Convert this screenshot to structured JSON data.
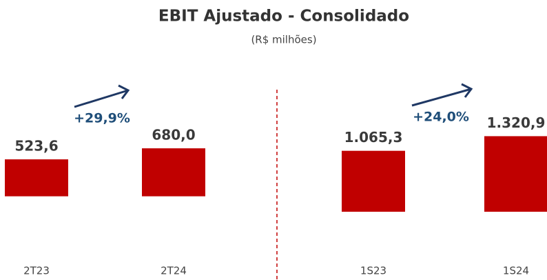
{
  "header": {
    "title": "EBIT Ajustado - Consolidado",
    "subtitle": "(R$ milhões)"
  },
  "chart_data": [
    {
      "type": "bar",
      "categories": [
        "2T23",
        "2T24"
      ],
      "values": [
        523.6,
        680.0
      ],
      "value_labels": [
        "523,6",
        "680,0"
      ],
      "color": "#c00000",
      "ylim": [
        -815,
        1316
      ],
      "annotations": [
        "+29,9%"
      ]
    },
    {
      "type": "bar",
      "categories": [
        "1S23",
        "1S24"
      ],
      "values": [
        1065.3,
        1320.9
      ],
      "value_labels": [
        "1.065,3",
        "1.320,9"
      ],
      "color": "#c00000",
      "ylim": [
        -735,
        1893
      ],
      "annotations": [
        "+24,0%"
      ]
    }
  ]
}
